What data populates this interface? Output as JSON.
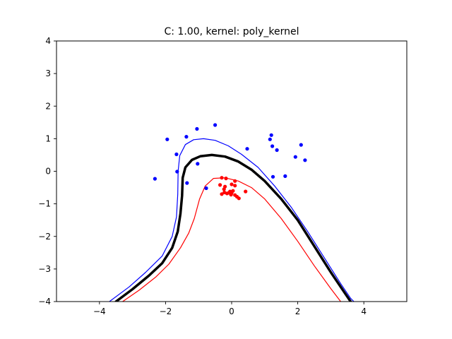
{
  "chart_data": {
    "type": "scatter",
    "title": "C: 1.00, kernel: poly_kernel",
    "xlabel": "",
    "ylabel": "",
    "xlim": [
      -5.3,
      5.3
    ],
    "ylim": [
      -4,
      4
    ],
    "x_ticks": [
      -4,
      -2,
      0,
      2,
      4
    ],
    "y_ticks": [
      -4,
      -3,
      -2,
      -1,
      0,
      1,
      2,
      3,
      4
    ],
    "x_tick_labels": [
      "−4",
      "−2",
      "0",
      "2",
      "4"
    ],
    "y_tick_labels": [
      "−4",
      "−3",
      "−2",
      "−1",
      "0",
      "1",
      "2",
      "3",
      "4"
    ],
    "grid": false,
    "colors": {
      "class_pos": "#0000ff",
      "class_neg": "#ff0000",
      "boundary": "#000000",
      "axes": "#000000",
      "background": "#ffffff"
    },
    "series": [
      {
        "color": "#0000ff",
        "points": [
          [
            -0.5,
            1.42
          ],
          [
            -1.05,
            1.3
          ],
          [
            -1.37,
            1.06
          ],
          [
            -1.95,
            0.98
          ],
          [
            -1.67,
            0.52
          ],
          [
            -1.65,
            -0.01
          ],
          [
            -2.32,
            -0.23
          ],
          [
            -1.35,
            -0.36
          ],
          [
            -1.03,
            0.23
          ],
          [
            -0.77,
            -0.52
          ],
          [
            0.47,
            0.69
          ],
          [
            1.2,
            1.11
          ],
          [
            1.16,
            0.98
          ],
          [
            1.23,
            0.77
          ],
          [
            1.37,
            0.65
          ],
          [
            2.1,
            0.81
          ],
          [
            1.93,
            0.44
          ],
          [
            2.22,
            0.34
          ],
          [
            1.25,
            -0.17
          ],
          [
            1.62,
            -0.15
          ]
        ]
      },
      {
        "color": "#ff0000",
        "points": [
          [
            -0.3,
            -0.2
          ],
          [
            -0.17,
            -0.22
          ],
          [
            0.1,
            -0.3
          ],
          [
            -0.35,
            -0.42
          ],
          [
            -0.2,
            -0.47
          ],
          [
            0.0,
            -0.4
          ],
          [
            0.1,
            -0.44
          ],
          [
            -0.23,
            -0.55
          ],
          [
            -0.05,
            -0.62
          ],
          [
            -0.22,
            -0.65
          ],
          [
            -0.14,
            -0.68
          ],
          [
            0.0,
            -0.67
          ],
          [
            -0.02,
            -0.72
          ],
          [
            -0.3,
            -0.7
          ],
          [
            0.42,
            -0.62
          ],
          [
            0.1,
            -0.73
          ],
          [
            0.16,
            -0.78
          ],
          [
            0.22,
            -0.83
          ],
          [
            0.04,
            -0.6
          ],
          [
            -0.08,
            -0.66
          ]
        ]
      }
    ],
    "contours": [
      {
        "color": "#000000",
        "width": 3.5,
        "points": [
          [
            -3.5,
            -4.0
          ],
          [
            -3.0,
            -3.62
          ],
          [
            -2.5,
            -3.2
          ],
          [
            -2.1,
            -2.82
          ],
          [
            -1.8,
            -2.35
          ],
          [
            -1.63,
            -1.85
          ],
          [
            -1.55,
            -1.3
          ],
          [
            -1.5,
            -0.75
          ],
          [
            -1.48,
            -0.2
          ],
          [
            -1.4,
            0.12
          ],
          [
            -1.2,
            0.35
          ],
          [
            -0.95,
            0.46
          ],
          [
            -0.6,
            0.5
          ],
          [
            -0.2,
            0.45
          ],
          [
            0.2,
            0.3
          ],
          [
            0.6,
            0.05
          ],
          [
            1.0,
            -0.3
          ],
          [
            1.5,
            -0.85
          ],
          [
            2.0,
            -1.5
          ],
          [
            2.5,
            -2.3
          ],
          [
            3.0,
            -3.1
          ],
          [
            3.4,
            -3.7
          ],
          [
            3.6,
            -4.0
          ]
        ]
      },
      {
        "color": "#0000ff",
        "width": 1.2,
        "points": [
          [
            -3.7,
            -4.0
          ],
          [
            -3.1,
            -3.55
          ],
          [
            -2.6,
            -3.1
          ],
          [
            -2.1,
            -2.6
          ],
          [
            -1.8,
            -2.0
          ],
          [
            -1.67,
            -1.4
          ],
          [
            -1.63,
            -0.7
          ],
          [
            -1.62,
            0.0
          ],
          [
            -1.57,
            0.48
          ],
          [
            -1.4,
            0.82
          ],
          [
            -1.15,
            0.97
          ],
          [
            -0.85,
            1.0
          ],
          [
            -0.5,
            0.95
          ],
          [
            -0.1,
            0.78
          ],
          [
            0.3,
            0.52
          ],
          [
            0.8,
            0.12
          ],
          [
            1.3,
            -0.45
          ],
          [
            1.8,
            -1.1
          ],
          [
            2.3,
            -1.85
          ],
          [
            2.8,
            -2.65
          ],
          [
            3.3,
            -3.45
          ],
          [
            3.6,
            -3.9
          ],
          [
            3.7,
            -4.0
          ]
        ]
      },
      {
        "color": "#ff0000",
        "width": 1.2,
        "points": [
          [
            -3.3,
            -4.0
          ],
          [
            -2.8,
            -3.65
          ],
          [
            -2.3,
            -3.25
          ],
          [
            -1.9,
            -2.85
          ],
          [
            -1.55,
            -2.35
          ],
          [
            -1.3,
            -1.9
          ],
          [
            -1.13,
            -1.45
          ],
          [
            -0.97,
            -0.85
          ],
          [
            -0.8,
            -0.45
          ],
          [
            -0.55,
            -0.22
          ],
          [
            -0.2,
            -0.2
          ],
          [
            0.2,
            -0.3
          ],
          [
            0.6,
            -0.5
          ],
          [
            1.0,
            -0.85
          ],
          [
            1.5,
            -1.45
          ],
          [
            2.0,
            -2.15
          ],
          [
            2.5,
            -2.9
          ],
          [
            3.0,
            -3.6
          ],
          [
            3.3,
            -4.0
          ]
        ]
      }
    ]
  }
}
